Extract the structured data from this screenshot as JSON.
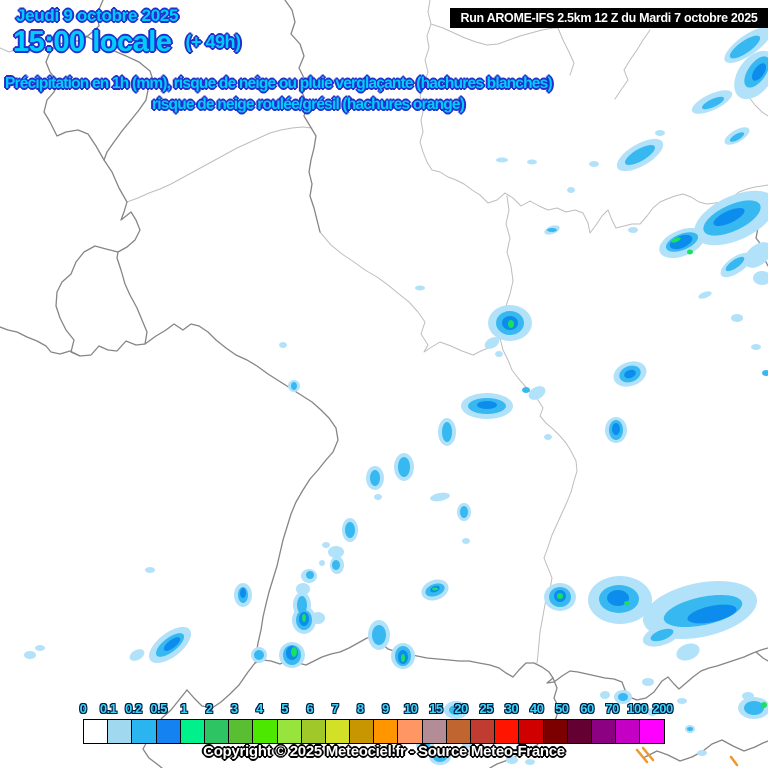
{
  "header": {
    "date": "Jeudi 9 octobre 2025",
    "time": "15:00 locale",
    "offset": "(+ 49h)",
    "run_info": "Run AROME-IFS 2.5km 12 Z du Mardi 7 octobre 2025",
    "subtitle_line1": "Précipitation en 1h (mm), risque de neige ou pluie verglaçante (hachures blanches)",
    "subtitle_line2": "risque de neige roulée/grésil (hachures orange)"
  },
  "legend": {
    "values": [
      "0",
      "0.1",
      "0.2",
      "0.5",
      "1",
      "2",
      "3",
      "4",
      "5",
      "6",
      "7",
      "8",
      "9",
      "10",
      "15",
      "20",
      "25",
      "30",
      "40",
      "50",
      "60",
      "70",
      "100",
      "200"
    ],
    "colors": [
      "#ffffff",
      "#a0d8f0",
      "#2ab4f0",
      "#1482f0",
      "#00f08c",
      "#2dc464",
      "#5abe32",
      "#4ce800",
      "#96e43c",
      "#a0c828",
      "#d2e028",
      "#c89600",
      "#ff9600",
      "#ff9664",
      "#b48c96",
      "#c06430",
      "#c03c30",
      "#ff1400",
      "#d00000",
      "#7c0000",
      "#640032",
      "#8c0082",
      "#c400c4",
      "#ff00ff"
    ]
  },
  "footer": {
    "copyright": "Copyright © 2025 Meteociel.fr - Source Meteo-France"
  },
  "colors": {
    "title_fill": "#00ccff",
    "title_outline": "#2230cc",
    "banner_bg": "#000000",
    "banner_text": "#ffffff",
    "legend_label": "#3dd4f8",
    "precip_light": "#b2e2f9",
    "precip_mid": "#38b8f0",
    "precip_dark": "#0c8cec",
    "precip_green": "#19e05f",
    "hatch_orange": "#f0962e",
    "border_country": "#858585",
    "border_region": "#bdbdbd"
  }
}
